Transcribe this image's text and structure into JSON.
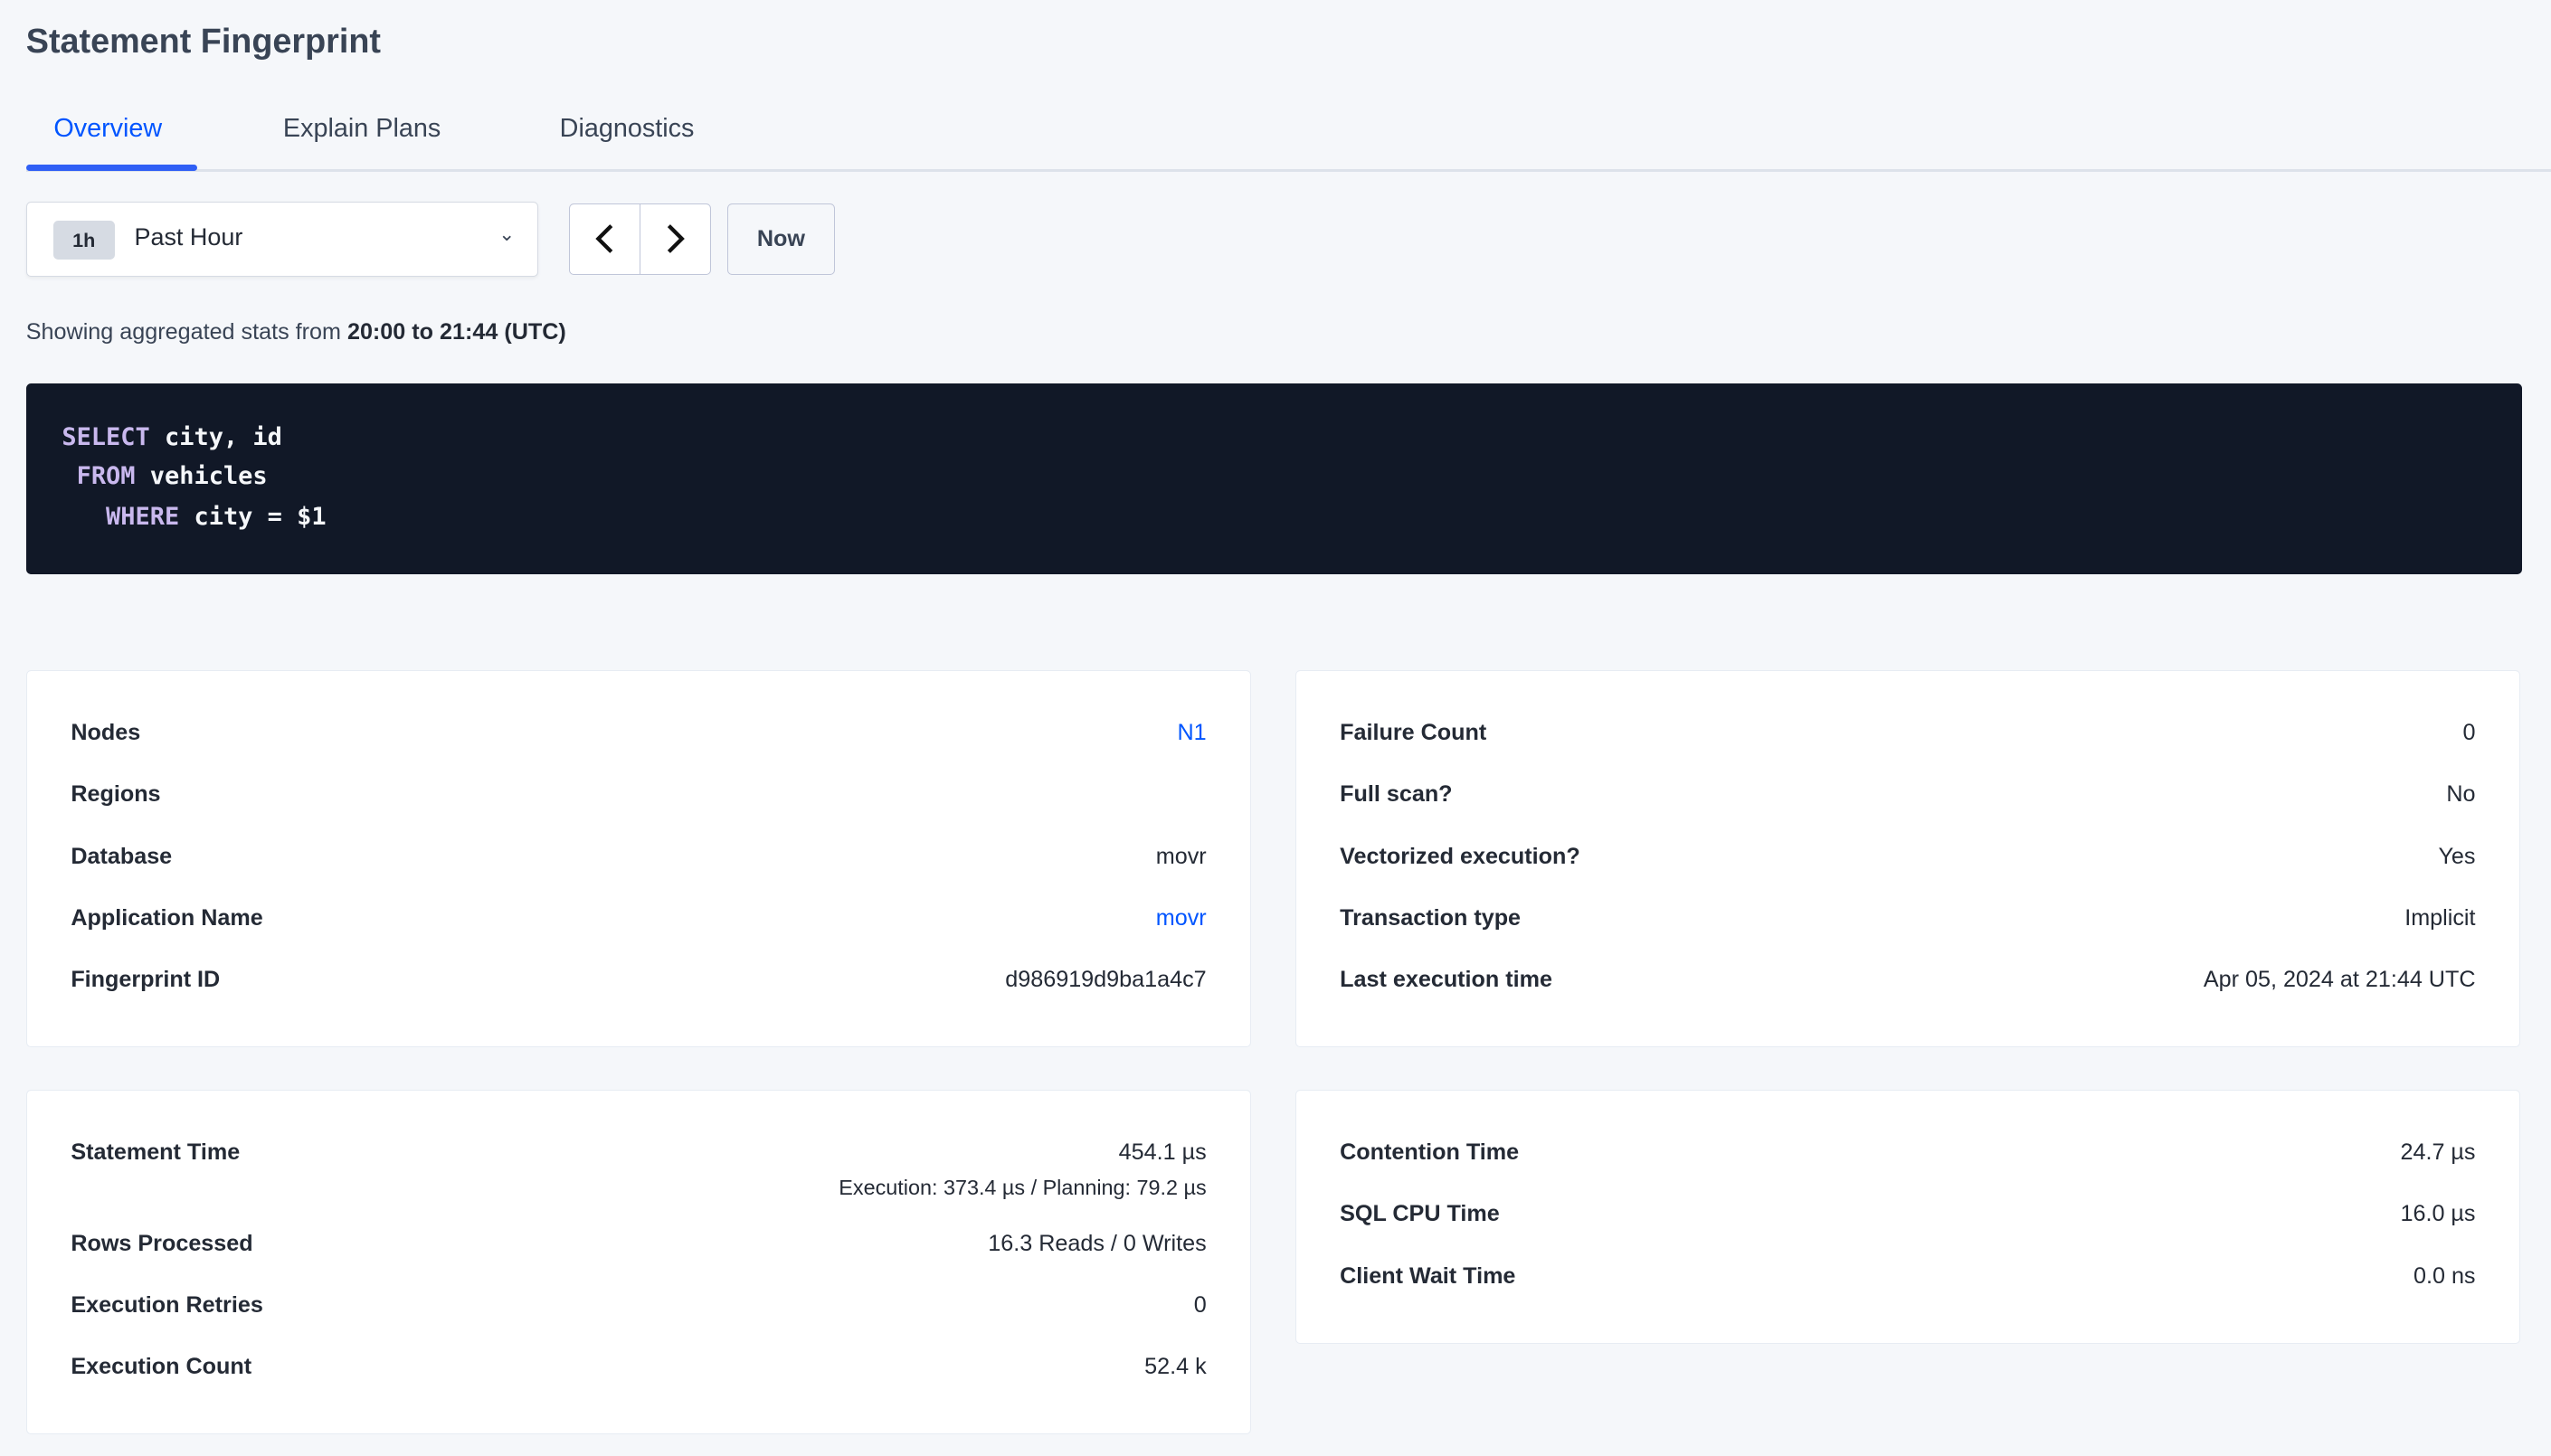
{
  "title": "Statement Fingerprint",
  "tabs": [
    {
      "label": "Overview",
      "active": true
    },
    {
      "label": "Explain Plans"
    },
    {
      "label": "Diagnostics"
    }
  ],
  "time_range": {
    "badge": "1h",
    "label": "Past Hour",
    "now_label": "Now"
  },
  "showing": {
    "prefix": "Showing aggregated stats from ",
    "range": "20:00 to 21:44 (UTC)"
  },
  "sql": [
    {
      "indent": "",
      "kw": "SELECT",
      "rest": " city, id"
    },
    {
      "indent": " ",
      "kw": "FROM",
      "rest": " vehicles"
    },
    {
      "indent": "   ",
      "kw": "WHERE",
      "rest": " city = $1"
    }
  ],
  "info_left": [
    {
      "label": "Nodes",
      "value": "N1",
      "link": true
    },
    {
      "label": "Regions",
      "value": ""
    },
    {
      "label": "Database",
      "value": "movr"
    },
    {
      "label": "Application Name",
      "value": "movr",
      "link": true
    },
    {
      "label": "Fingerprint ID",
      "value": "d986919d9ba1a4c7"
    }
  ],
  "info_right": [
    {
      "label": "Failure Count",
      "value": "0"
    },
    {
      "label": "Full scan?",
      "value": "No"
    },
    {
      "label": "Vectorized execution?",
      "value": "Yes"
    },
    {
      "label": "Transaction type",
      "value": "Implicit"
    },
    {
      "label": "Last execution time",
      "value": "Apr 05, 2024 at 21:44 UTC"
    }
  ],
  "stats_left": [
    {
      "label": "Statement Time",
      "value": "454.1 µs",
      "sub": "Execution: 373.4 µs / Planning: 79.2 µs"
    },
    {
      "label": "Rows Processed",
      "value": "16.3 Reads / 0 Writes"
    },
    {
      "label": "Execution Retries",
      "value": "0"
    },
    {
      "label": "Execution Count",
      "value": "52.4 k"
    }
  ],
  "stats_right": [
    {
      "label": "Contention Time",
      "value": "24.7 µs"
    },
    {
      "label": "SQL CPU Time",
      "value": "16.0 µs"
    },
    {
      "label": "Client Wait Time",
      "value": "0.0 ns"
    }
  ],
  "colors": {
    "accent": "#0055ff",
    "code_bg": "#111827",
    "keyword": "#c9b8ee"
  }
}
